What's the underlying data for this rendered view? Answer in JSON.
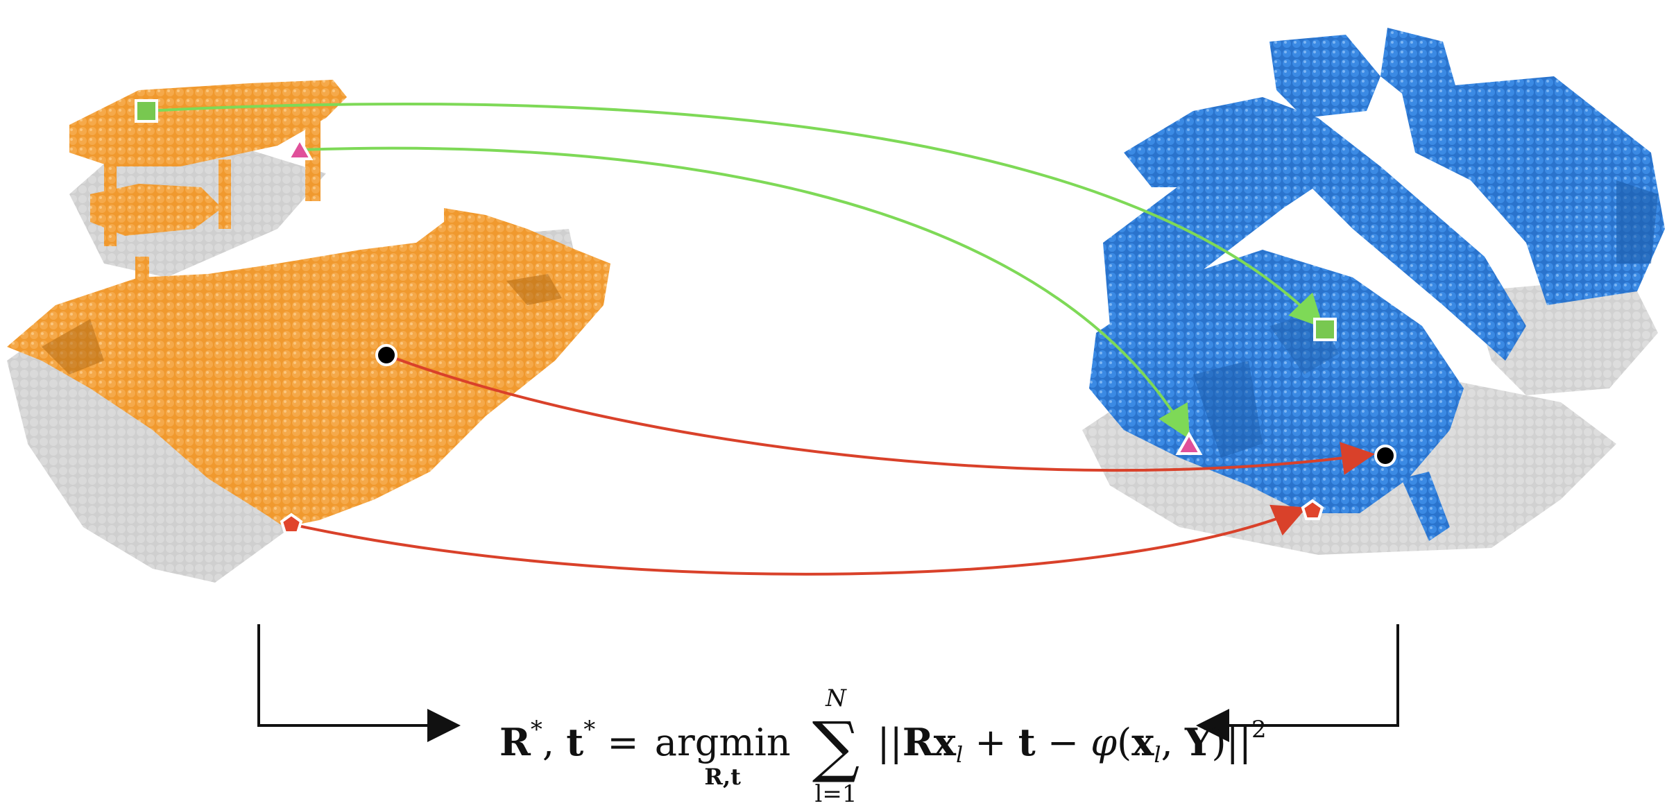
{
  "figure": {
    "source_cloud": {
      "color": "#F0992E",
      "shadow_color": "#B8B8B8"
    },
    "target_cloud": {
      "color": "#2F7ED8",
      "shadow_color": "#B8B8B8"
    },
    "correspondences": [
      {
        "marker": "square",
        "marker_color": "#78C850",
        "arrow_color": "#7ED957"
      },
      {
        "marker": "triangle",
        "marker_color": "#E0509A",
        "arrow_color": "#7ED957"
      },
      {
        "marker": "circle",
        "marker_color": "#000000",
        "arrow_color": "#D9412A"
      },
      {
        "marker": "pentagon",
        "marker_color": "#E0452C",
        "arrow_color": "#D9412A"
      }
    ],
    "bracket_arrow_color": "#111111"
  },
  "equation": {
    "lhs": "R*, t* = ",
    "argmin_word": "argmin",
    "argmin_sub": "R,t",
    "sum_upper": "N",
    "sum_lower": "l=1",
    "rhs": "||Rx_l + t − φ(x_l, Y)||²"
  }
}
